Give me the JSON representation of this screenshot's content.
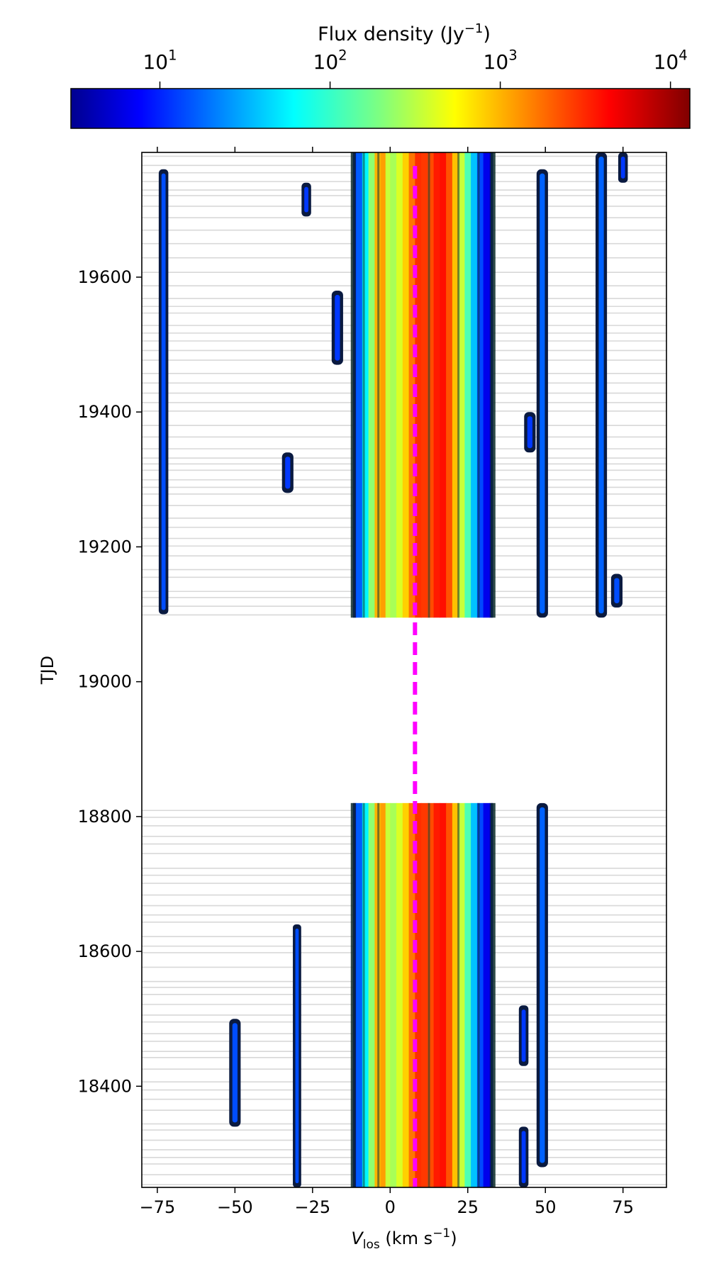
{
  "chart_data": {
    "type": "heatmap",
    "title": "",
    "xlabel": "V_los (km s^-1)",
    "ylabel": "TJD",
    "xlim": [
      -80,
      89
    ],
    "ylim": [
      18250,
      19785
    ],
    "x_ticks": [
      -75,
      -50,
      -25,
      0,
      25,
      50,
      75
    ],
    "x_tick_labels": [
      "−75",
      "−50",
      "−25",
      "0",
      "25",
      "50",
      "75"
    ],
    "y_ticks": [
      18400,
      18600,
      18800,
      19000,
      19200,
      19400,
      19600
    ],
    "y_tick_labels": [
      "18400",
      "18600",
      "18800",
      "19000",
      "19200",
      "19400",
      "19600"
    ],
    "colorbar": {
      "label": "Flux density (Jy^-1)",
      "colormap": "jet",
      "scale": "log",
      "range": [
        3,
        13000
      ],
      "ticks": [
        10,
        100,
        1000,
        10000
      ],
      "tick_labels": [
        "10^1",
        "10^2",
        "10^3",
        "10^4"
      ]
    },
    "data_gaps": [
      [
        18820,
        19095
      ]
    ],
    "epochs": [
      {
        "tjd_start": 18250,
        "tjd_end": 18820
      },
      {
        "tjd_start": 19095,
        "tjd_end": 19785
      }
    ],
    "reference_line": {
      "v_los": 8,
      "style": "dashed",
      "color": "#ff00ff"
    },
    "emission_features": [
      {
        "v_center": -73,
        "v_halfwidth": 1.2,
        "level": 0.2,
        "tjd_ranges": [
          [
            19100,
            19760
          ]
        ]
      },
      {
        "v_center": -30,
        "v_halfwidth": 1.0,
        "level": 0.2,
        "tjd_ranges": [
          [
            18250,
            18640
          ]
        ]
      },
      {
        "v_center": -50,
        "v_halfwidth": 1.5,
        "level": 0.2,
        "tjd_ranges": [
          [
            18340,
            18500
          ]
        ]
      },
      {
        "v_center": -33,
        "v_halfwidth": 1.5,
        "level": 0.18,
        "tjd_ranges": [
          [
            19280,
            19340
          ]
        ]
      },
      {
        "v_center": -27,
        "v_halfwidth": 1.2,
        "level": 0.18,
        "tjd_ranges": [
          [
            19690,
            19740
          ]
        ]
      },
      {
        "v_center": -17,
        "v_halfwidth": 1.5,
        "level": 0.18,
        "tjd_ranges": [
          [
            19470,
            19580
          ]
        ]
      },
      {
        "v_center": 43,
        "v_halfwidth": 1.2,
        "level": 0.18,
        "tjd_ranges": [
          [
            18250,
            18340
          ],
          [
            18430,
            18520
          ]
        ]
      },
      {
        "v_center": 49,
        "v_halfwidth": 1.5,
        "level": 0.22,
        "tjd_ranges": [
          [
            18280,
            18820
          ],
          [
            19095,
            19760
          ]
        ]
      },
      {
        "v_center": 45,
        "v_halfwidth": 1.5,
        "level": 0.18,
        "tjd_ranges": [
          [
            19340,
            19400
          ]
        ]
      },
      {
        "v_center": 68,
        "v_halfwidth": 1.5,
        "level": 0.22,
        "tjd_ranges": [
          [
            19095,
            19785
          ]
        ]
      },
      {
        "v_center": 73,
        "v_halfwidth": 1.5,
        "level": 0.2,
        "tjd_ranges": [
          [
            19110,
            19160
          ]
        ]
      },
      {
        "v_center": 75,
        "v_halfwidth": 1.2,
        "level": 0.18,
        "tjd_ranges": [
          [
            19740,
            19785
          ]
        ]
      }
    ],
    "main_emission": {
      "v_min": -12,
      "v_max": 33,
      "profile": [
        {
          "v": -12,
          "level": 0.06
        },
        {
          "v": -11,
          "level": 0.15
        },
        {
          "v": -9,
          "level": 0.28
        },
        {
          "v": -7,
          "level": 0.45
        },
        {
          "v": -5,
          "level": 0.58
        },
        {
          "v": -3,
          "level": 0.82
        },
        {
          "v": -1.5,
          "level": 0.62
        },
        {
          "v": 0,
          "level": 0.52
        },
        {
          "v": 2,
          "level": 0.56
        },
        {
          "v": 4,
          "level": 0.62
        },
        {
          "v": 6,
          "level": 0.72
        },
        {
          "v": 8,
          "level": 0.8
        },
        {
          "v": 10,
          "level": 0.86
        },
        {
          "v": 12,
          "level": 0.78
        },
        {
          "v": 14,
          "level": 0.82
        },
        {
          "v": 16,
          "level": 0.88
        },
        {
          "v": 18,
          "level": 0.84
        },
        {
          "v": 20,
          "level": 0.75
        },
        {
          "v": 22,
          "level": 0.62
        },
        {
          "v": 24,
          "level": 0.52
        },
        {
          "v": 26,
          "level": 0.38
        },
        {
          "v": 28,
          "level": 0.25
        },
        {
          "v": 30,
          "level": 0.14
        },
        {
          "v": 32,
          "level": 0.07
        },
        {
          "v": 33,
          "level": 0.04
        }
      ]
    }
  }
}
